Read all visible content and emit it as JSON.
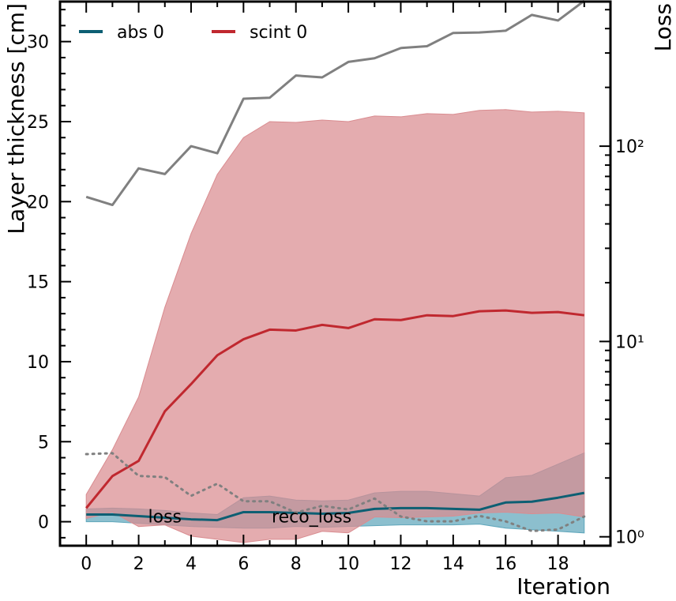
{
  "chart_data": {
    "type": "line",
    "xlabel": "Iteration",
    "ylabel": "Layer thickness [cm]",
    "y2label": "Loss",
    "x": [
      0,
      1,
      2,
      3,
      4,
      5,
      6,
      7,
      8,
      9,
      10,
      11,
      12,
      13,
      14,
      15,
      16,
      17,
      18,
      19
    ],
    "xlim": [
      -1,
      20
    ],
    "ylim": [
      -1.5,
      32.5
    ],
    "y2lim": [
      0.9,
      550
    ],
    "y2scale": "log",
    "xticks": [
      0,
      2,
      4,
      6,
      8,
      10,
      12,
      14,
      16,
      18
    ],
    "yticks": [
      0,
      5,
      10,
      15,
      20,
      25,
      30
    ],
    "y2ticks": [
      1,
      10,
      100
    ],
    "y2ticklabels": [
      "10⁰",
      "10¹",
      "10²"
    ],
    "series": [
      {
        "name": "abs 0",
        "axis": "left",
        "color": "#0d5f73",
        "band_color": "#5fa6bb",
        "values": [
          0.45,
          0.45,
          0.35,
          0.25,
          0.15,
          0.1,
          0.6,
          0.6,
          0.55,
          0.5,
          0.55,
          0.8,
          0.85,
          0.85,
          0.8,
          0.75,
          1.2,
          1.25,
          1.5,
          1.8
        ],
        "band_upper": [
          0.8,
          0.85,
          0.8,
          0.7,
          0.55,
          0.45,
          1.5,
          1.6,
          1.35,
          1.3,
          1.35,
          1.8,
          1.9,
          1.9,
          1.75,
          1.6,
          2.75,
          2.9,
          3.6,
          4.3
        ],
        "band_lower": [
          0.0,
          0.0,
          -0.1,
          -0.2,
          -0.3,
          -0.35,
          -0.4,
          -0.4,
          -0.3,
          -0.35,
          -0.3,
          -0.25,
          -0.2,
          -0.2,
          -0.2,
          -0.15,
          -0.4,
          -0.5,
          -0.6,
          -0.7
        ]
      },
      {
        "name": "scint 0",
        "axis": "left",
        "color": "#c0282f",
        "band_color": "#d98c90",
        "values": [
          0.85,
          2.85,
          3.8,
          6.9,
          8.6,
          10.4,
          11.4,
          12.0,
          11.95,
          12.3,
          12.1,
          12.65,
          12.6,
          12.9,
          12.85,
          13.15,
          13.2,
          13.05,
          13.1,
          12.9
        ],
        "band_upper": [
          1.7,
          4.5,
          7.8,
          13.4,
          18.0,
          21.7,
          24.0,
          25.0,
          24.95,
          25.1,
          25.0,
          25.35,
          25.3,
          25.5,
          25.45,
          25.7,
          25.75,
          25.6,
          25.65,
          25.55
        ],
        "band_lower": [
          0.2,
          0.6,
          -0.3,
          -0.2,
          -0.9,
          -1.1,
          -1.3,
          -1.1,
          -1.1,
          -0.6,
          -0.7,
          0.3,
          0.25,
          0.3,
          0.35,
          0.55,
          0.6,
          0.5,
          0.55,
          0.3
        ]
      },
      {
        "name": "loss",
        "axis": "right",
        "color": "#808080",
        "style": "solid",
        "values": [
          55,
          50,
          77,
          72,
          100,
          92,
          175,
          177,
          230,
          225,
          270,
          282,
          318,
          325,
          380,
          382,
          390,
          470,
          440,
          555
        ]
      },
      {
        "name": "reco_loss",
        "axis": "right",
        "color": "#808080",
        "style": "dotted",
        "values": [
          2.65,
          2.68,
          2.05,
          2.02,
          1.62,
          1.87,
          1.52,
          1.52,
          1.33,
          1.44,
          1.38,
          1.57,
          1.27,
          1.2,
          1.2,
          1.28,
          1.2,
          1.07,
          1.09,
          1.27
        ]
      }
    ],
    "legend": [
      {
        "label": "abs 0",
        "color": "#0d5f73"
      },
      {
        "label": "scint 0",
        "color": "#c0282f"
      }
    ],
    "legend_position": "top-left",
    "inline_labels": [
      {
        "text": "loss",
        "x": 3.0,
        "y": 0.35
      },
      {
        "text": "reco_loss",
        "x": 8.6,
        "y": 0.35
      }
    ],
    "grid": false
  }
}
